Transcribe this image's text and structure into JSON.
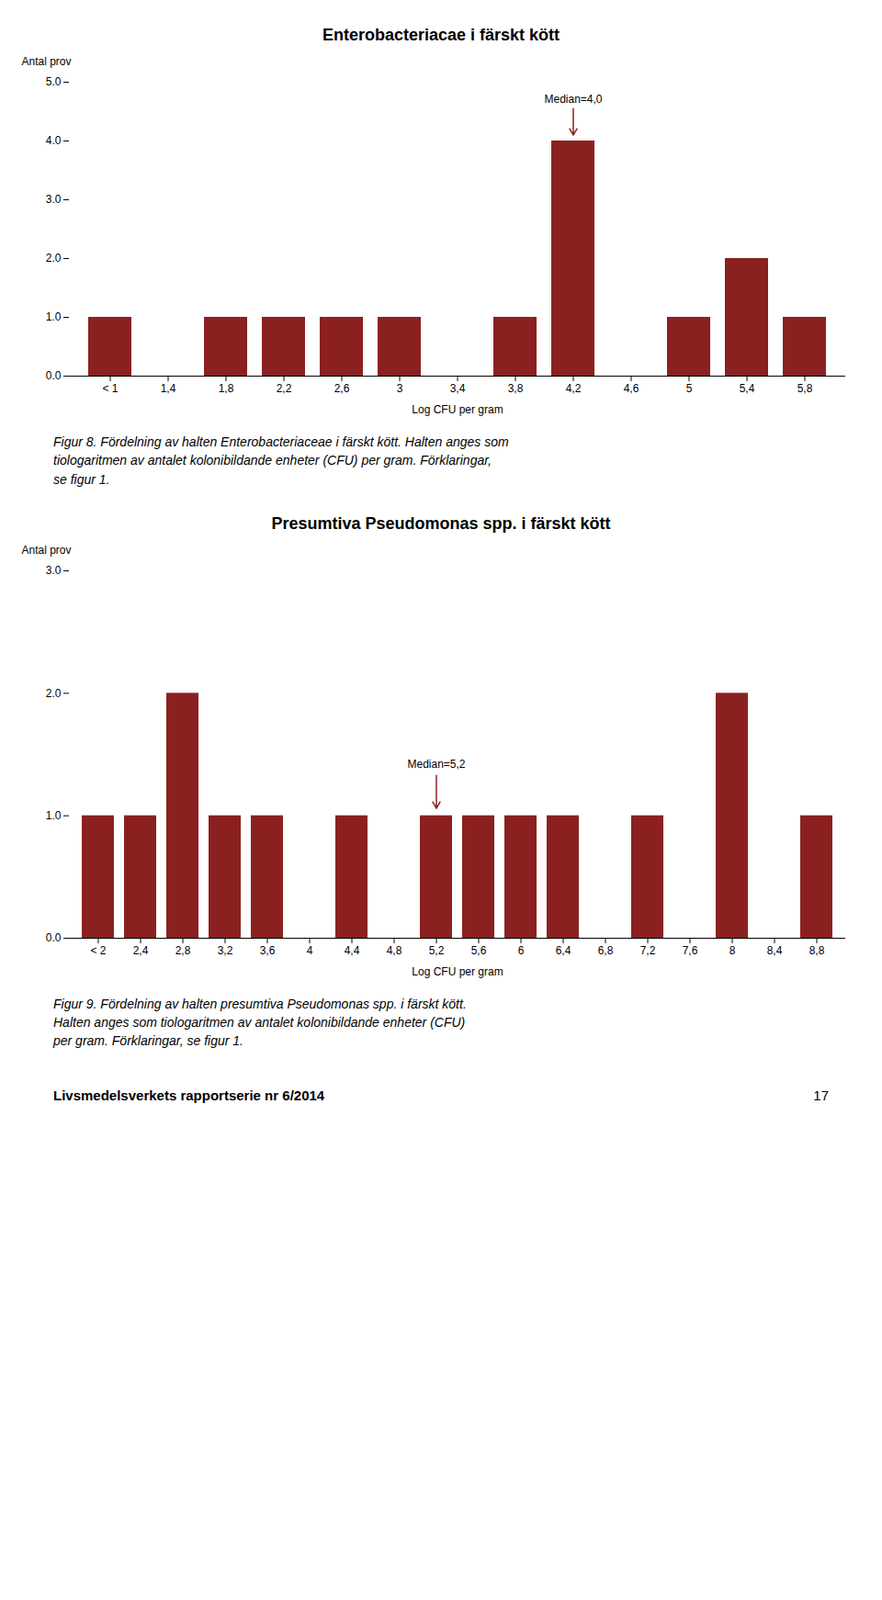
{
  "chart_data": [
    {
      "type": "bar",
      "title": "Enterobacteriacae i färskt kött",
      "categories": [
        "< 1",
        "1,4",
        "1,8",
        "2,2",
        "2,6",
        "3",
        "3,4",
        "3,8",
        "4,2",
        "4,6",
        "5",
        "5,4",
        "5,8"
      ],
      "values": [
        1,
        0,
        1,
        1,
        1,
        1,
        0,
        1,
        4,
        0,
        1,
        2,
        1
      ],
      "color": "#8B2020",
      "xlabel": "Log CFU per gram",
      "ylabel": "Antal prov",
      "ylim": [
        0,
        5
      ],
      "yticks": [
        0,
        1,
        2,
        3,
        4,
        5
      ],
      "grid": false,
      "annotations": [
        {
          "text": "Median=4,0",
          "x": "4,2"
        }
      ],
      "caption": [
        "Figur 8. Fördelning av halten Enterobacteriaceae i färskt kött. Halten anges som",
        "tiologaritmen av antalet kolonibildande enheter (CFU) per gram. Förklaringar,",
        "se figur 1."
      ]
    },
    {
      "type": "bar",
      "title": "Presumtiva Pseudomonas spp. i färskt kött",
      "categories": [
        "< 2",
        "2,4",
        "2,8",
        "3,2",
        "3,6",
        "4",
        "4,4",
        "4,8",
        "5,2",
        "5,6",
        "6",
        "6,4",
        "6,8",
        "7,2",
        "7,6",
        "8",
        "8,4",
        "8,8"
      ],
      "values": [
        1,
        1,
        2,
        1,
        1,
        0,
        1,
        0,
        1,
        1,
        1,
        1,
        0,
        1,
        0,
        2,
        0,
        1
      ],
      "color": "#8B2020",
      "xlabel": "Log CFU per gram",
      "ylabel": "Antal prov",
      "ylim": [
        0,
        3
      ],
      "yticks": [
        0,
        1,
        2,
        3
      ],
      "grid": false,
      "annotations": [
        {
          "text": "Median=5,2",
          "x": "5,2"
        }
      ],
      "caption": [
        "Figur 9. Fördelning av halten presumtiva Pseudomonas spp. i färskt kött.",
        "Halten anges som tiologaritmen av antalet kolonibildande enheter (CFU)",
        "per gram. Förklaringar, se figur 1."
      ]
    }
  ],
  "footer": "Livsmedelsverkets rapportserie nr 6/2014",
  "page": "17"
}
